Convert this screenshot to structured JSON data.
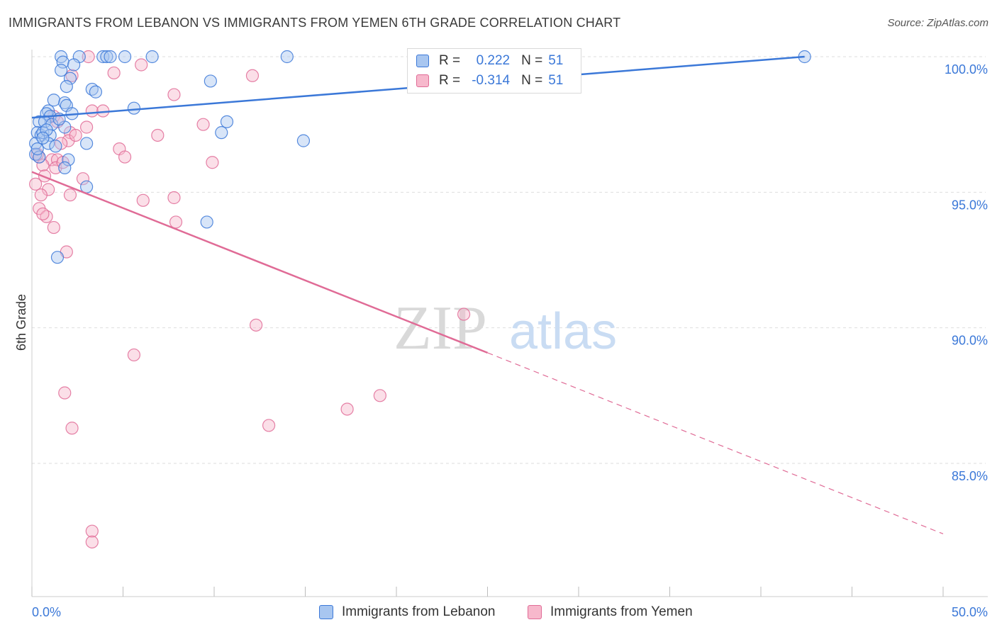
{
  "title": "IMMIGRANTS FROM LEBANON VS IMMIGRANTS FROM YEMEN 6TH GRADE CORRELATION CHART",
  "source": "Source: ZipAtlas.com",
  "watermark": {
    "zip": "ZIP",
    "atlas": "atlas"
  },
  "legend": {
    "r_label": "R =",
    "n_label": "N =",
    "series": [
      {
        "name": "Immigrants from Lebanon",
        "r": "0.222",
        "n": "51"
      },
      {
        "name": "Immigrants from Yemen",
        "r": "-0.314",
        "n": "51"
      }
    ]
  },
  "chart_data": {
    "type": "scatter",
    "title": "IMMIGRANTS FROM LEBANON VS IMMIGRANTS FROM YEMEN 6TH GRADE CORRELATION CHART",
    "xlabel": "",
    "ylabel": "6th Grade",
    "xlim": [
      0,
      50
    ],
    "ylim": [
      80.5,
      100.8
    ],
    "x_tick_labels": [
      "0.0%",
      "50.0%"
    ],
    "y_ticks": [
      85,
      90,
      95,
      100
    ],
    "y_tick_labels": [
      "85.0%",
      "90.0%",
      "95.0%",
      "100.0%"
    ],
    "grid": true,
    "colors": {
      "lebanon": "#3b78d8",
      "lebanon_fill": "#a8c6f0",
      "yemen": "#e06b96",
      "yemen_fill": "#f7b8cc"
    },
    "series": [
      {
        "name": "Immigrants from Lebanon",
        "trend": {
          "x": [
            0.0,
            42.4
          ],
          "y": [
            97.75,
            100.0
          ],
          "style": "solid"
        },
        "points": [
          [
            1.6,
            100.0
          ],
          [
            2.6,
            100.0
          ],
          [
            3.9,
            100.0
          ],
          [
            4.1,
            100.0
          ],
          [
            4.3,
            100.0
          ],
          [
            5.1,
            100.0
          ],
          [
            6.6,
            100.0
          ],
          [
            14.0,
            100.0
          ],
          [
            42.4,
            100.0
          ],
          [
            1.7,
            99.8
          ],
          [
            2.3,
            99.7
          ],
          [
            1.6,
            99.5
          ],
          [
            2.1,
            99.2
          ],
          [
            9.8,
            99.1
          ],
          [
            3.3,
            98.8
          ],
          [
            3.5,
            98.7
          ],
          [
            1.9,
            98.9
          ],
          [
            1.2,
            98.4
          ],
          [
            1.8,
            98.3
          ],
          [
            1.9,
            98.2
          ],
          [
            5.6,
            98.1
          ],
          [
            0.9,
            98.0
          ],
          [
            0.8,
            97.9
          ],
          [
            1.0,
            97.8
          ],
          [
            2.2,
            97.9
          ],
          [
            0.4,
            97.6
          ],
          [
            0.7,
            97.6
          ],
          [
            1.1,
            97.5
          ],
          [
            1.8,
            97.4
          ],
          [
            10.7,
            97.6
          ],
          [
            0.3,
            97.2
          ],
          [
            0.5,
            97.1
          ],
          [
            0.6,
            97.2
          ],
          [
            1.0,
            97.1
          ],
          [
            10.4,
            97.2
          ],
          [
            0.2,
            96.8
          ],
          [
            0.9,
            96.8
          ],
          [
            1.3,
            96.7
          ],
          [
            3.0,
            96.8
          ],
          [
            14.9,
            96.9
          ],
          [
            0.2,
            96.4
          ],
          [
            0.4,
            96.3
          ],
          [
            2.0,
            96.2
          ],
          [
            1.8,
            95.9
          ],
          [
            3.0,
            95.2
          ],
          [
            9.6,
            93.9
          ],
          [
            1.4,
            92.6
          ],
          [
            0.3,
            96.6
          ],
          [
            0.8,
            97.3
          ],
          [
            1.5,
            97.7
          ],
          [
            0.6,
            97.0
          ]
        ]
      },
      {
        "name": "Immigrants from Yemen",
        "trend": {
          "x": [
            0.0,
            25.0
          ],
          "y": [
            95.75,
            89.08
          ],
          "style": "solid",
          "extended": {
            "x": [
              25.0,
              50.0
            ],
            "y": [
              89.08,
              82.4
            ],
            "style": "dashed"
          }
        },
        "points": [
          [
            3.1,
            100.0
          ],
          [
            6.0,
            99.7
          ],
          [
            4.5,
            99.4
          ],
          [
            12.1,
            99.3
          ],
          [
            2.2,
            99.3
          ],
          [
            7.8,
            98.6
          ],
          [
            3.3,
            98.0
          ],
          [
            3.9,
            98.0
          ],
          [
            1.2,
            97.8
          ],
          [
            9.4,
            97.5
          ],
          [
            3.0,
            97.4
          ],
          [
            2.1,
            97.2
          ],
          [
            6.9,
            97.1
          ],
          [
            2.0,
            96.9
          ],
          [
            1.6,
            96.8
          ],
          [
            4.8,
            96.6
          ],
          [
            5.1,
            96.3
          ],
          [
            9.9,
            96.1
          ],
          [
            0.4,
            96.3
          ],
          [
            1.1,
            96.2
          ],
          [
            1.4,
            96.2
          ],
          [
            0.6,
            96.0
          ],
          [
            1.3,
            95.9
          ],
          [
            2.8,
            95.5
          ],
          [
            0.2,
            95.3
          ],
          [
            0.9,
            95.1
          ],
          [
            0.5,
            94.9
          ],
          [
            2.1,
            94.9
          ],
          [
            7.8,
            94.8
          ],
          [
            6.1,
            94.7
          ],
          [
            0.4,
            94.4
          ],
          [
            0.8,
            94.1
          ],
          [
            0.6,
            94.2
          ],
          [
            7.9,
            93.9
          ],
          [
            1.2,
            93.7
          ],
          [
            1.9,
            92.8
          ],
          [
            23.7,
            90.5
          ],
          [
            12.3,
            90.1
          ],
          [
            5.6,
            89.0
          ],
          [
            1.8,
            87.6
          ],
          [
            19.1,
            87.5
          ],
          [
            17.3,
            87.0
          ],
          [
            13.0,
            86.4
          ],
          [
            2.2,
            86.3
          ],
          [
            3.3,
            82.5
          ],
          [
            3.3,
            82.1
          ],
          [
            0.3,
            96.4
          ],
          [
            1.7,
            96.1
          ],
          [
            2.4,
            97.1
          ],
          [
            0.7,
            95.6
          ],
          [
            1.4,
            97.6
          ]
        ]
      }
    ]
  }
}
